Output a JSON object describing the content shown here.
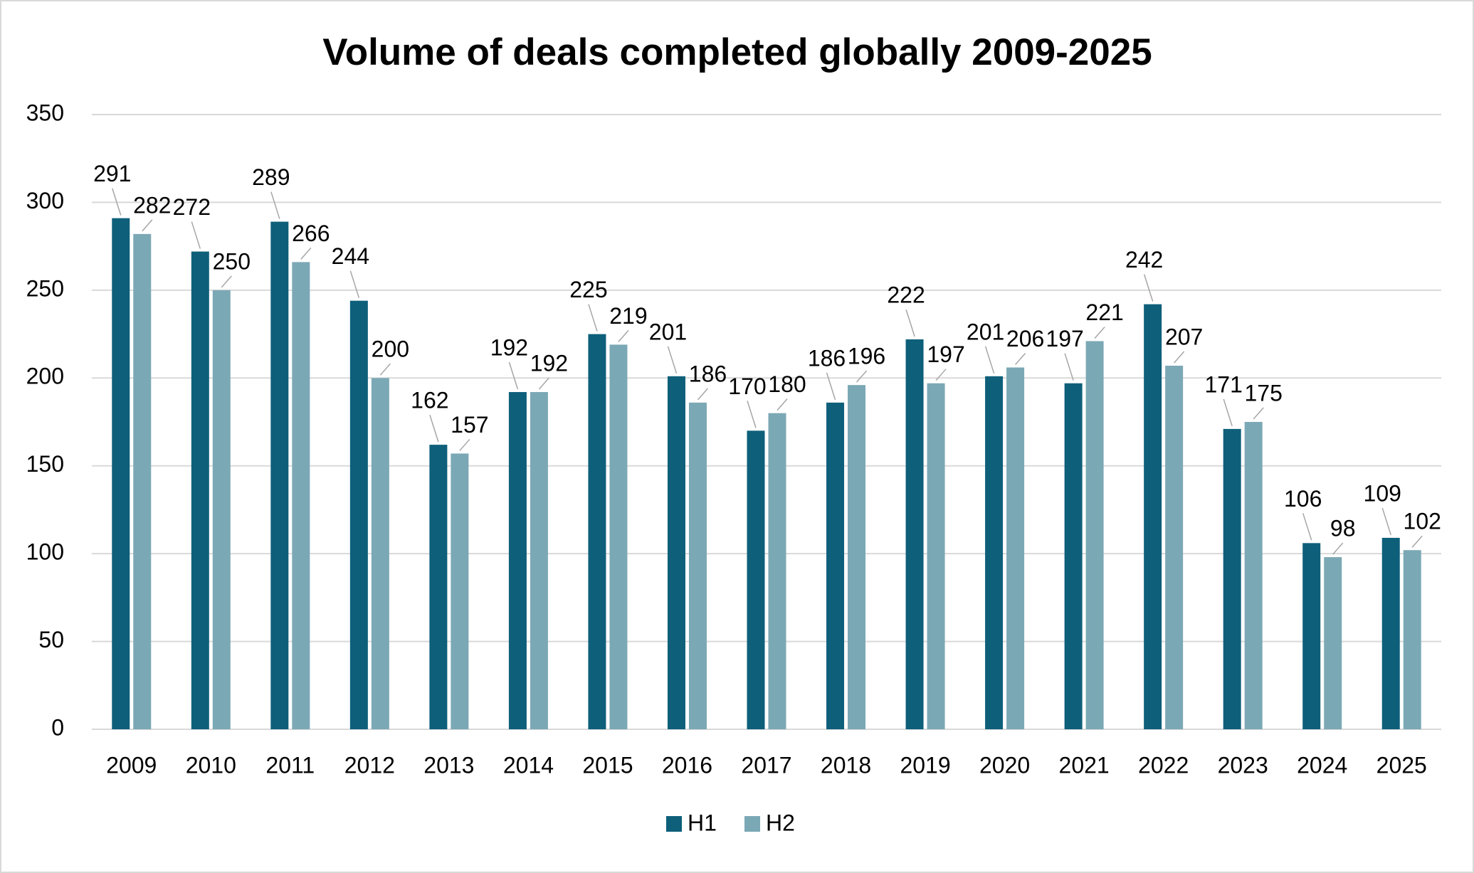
{
  "chart_data": {
    "type": "bar",
    "title": "Volume of deals completed globally 2009-2025",
    "categories": [
      "2009",
      "2010",
      "2011",
      "2012",
      "2013",
      "2014",
      "2015",
      "2016",
      "2017",
      "2018",
      "2019",
      "2020",
      "2021",
      "2022",
      "2023",
      "2024",
      "2025"
    ],
    "series": [
      {
        "name": "H1",
        "color": "#0e5f7a",
        "values": [
          291,
          272,
          289,
          244,
          162,
          192,
          225,
          201,
          170,
          186,
          222,
          201,
          197,
          242,
          171,
          106,
          109
        ]
      },
      {
        "name": "H2",
        "color": "#7ba8b5",
        "values": [
          282,
          250,
          266,
          200,
          157,
          192,
          219,
          186,
          180,
          196,
          197,
          206,
          221,
          207,
          175,
          98,
          102
        ]
      }
    ],
    "ylim": [
      0,
      350
    ],
    "yticks": [
      0,
      50,
      100,
      150,
      200,
      250,
      300,
      350
    ],
    "grid": true,
    "legend": "bottom"
  }
}
